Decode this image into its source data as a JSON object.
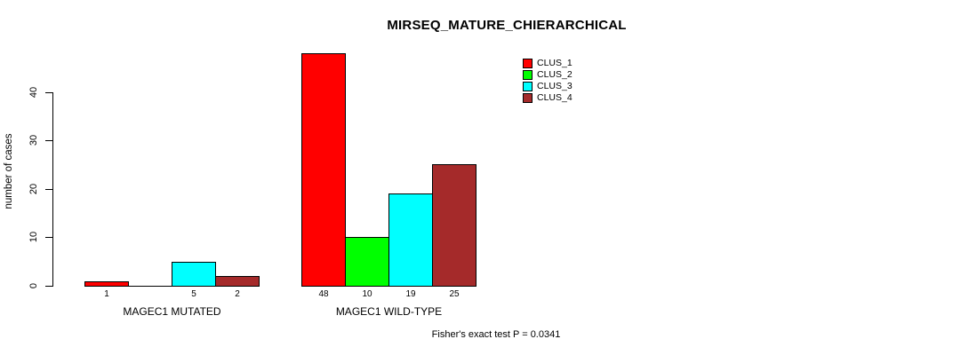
{
  "title": "MIRSEQ_MATURE_CHIERARCHICAL",
  "chart_data": {
    "type": "bar",
    "title": "MIRSEQ_MATURE_CHIERARCHICAL",
    "ylabel": "number of cases",
    "xlabel": "",
    "ylim": [
      0,
      48
    ],
    "yticks": [
      0,
      10,
      20,
      30,
      40
    ],
    "grid": false,
    "legend_position": "top-right",
    "categories": [
      "MAGEC1 MUTATED",
      "MAGEC1 WILD-TYPE"
    ],
    "series": [
      {
        "name": "CLUS_1",
        "color": "#FF0000",
        "values": [
          1,
          48
        ]
      },
      {
        "name": "CLUS_2",
        "color": "#00FF00",
        "values": [
          0,
          10
        ]
      },
      {
        "name": "CLUS_3",
        "color": "#00FFFF",
        "values": [
          5,
          19
        ]
      },
      {
        "name": "CLUS_4",
        "color": "#A52A2A",
        "values": [
          2,
          25
        ]
      }
    ],
    "bar_value_labels": [
      [
        "1",
        "",
        "5",
        "2"
      ],
      [
        "48",
        "10",
        "19",
        "25"
      ]
    ],
    "footnote": "Fisher's exact test P = 0.0341"
  }
}
